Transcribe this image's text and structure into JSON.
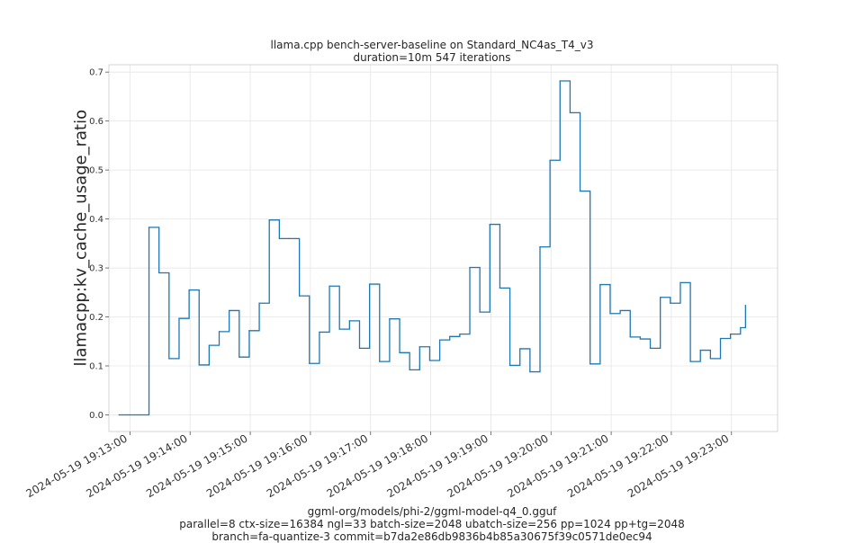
{
  "chart_data": {
    "type": "line",
    "title": "llama.cpp bench-server-baseline on Standard_NC4as_T4_v3",
    "subtitle": "duration=10m 547 iterations",
    "xlabel": "",
    "ylabel": "llamacpp:kv_cache_usage_ratio",
    "ylim": [
      -0.034,
      0.715
    ],
    "xlim": [
      "2024-05-19 19:12:39",
      "2024-05-19 19:23:46"
    ],
    "grid": true,
    "x_ticks": [
      "2024-05-19 19:13:00",
      "2024-05-19 19:14:00",
      "2024-05-19 19:15:00",
      "2024-05-19 19:16:00",
      "2024-05-19 19:17:00",
      "2024-05-19 19:18:00",
      "2024-05-19 19:19:00",
      "2024-05-19 19:20:00",
      "2024-05-19 19:21:00",
      "2024-05-19 19:22:00",
      "2024-05-19 19:23:00"
    ],
    "y_ticks": [
      "0.0",
      "0.1",
      "0.2",
      "0.3",
      "0.4",
      "0.5",
      "0.6",
      "0.7"
    ],
    "series": [
      {
        "color": "#1f77b4",
        "style": "step",
        "x": [
          "2024-05-19 19:12:49",
          "2024-05-19 19:12:59",
          "2024-05-19 19:13:09",
          "2024-05-19 19:13:19",
          "2024-05-19 19:13:29",
          "2024-05-19 19:13:39",
          "2024-05-19 19:13:49",
          "2024-05-19 19:13:59",
          "2024-05-19 19:14:09",
          "2024-05-19 19:14:19",
          "2024-05-19 19:14:29",
          "2024-05-19 19:14:39",
          "2024-05-19 19:14:49",
          "2024-05-19 19:14:59",
          "2024-05-19 19:15:09",
          "2024-05-19 19:15:19",
          "2024-05-19 19:15:29",
          "2024-05-19 19:15:39",
          "2024-05-19 19:15:49",
          "2024-05-19 19:15:59",
          "2024-05-19 19:16:09",
          "2024-05-19 19:16:19",
          "2024-05-19 19:16:29",
          "2024-05-19 19:16:39",
          "2024-05-19 19:16:49",
          "2024-05-19 19:16:59",
          "2024-05-19 19:17:09",
          "2024-05-19 19:17:19",
          "2024-05-19 19:17:29",
          "2024-05-19 19:17:39",
          "2024-05-19 19:17:49",
          "2024-05-19 19:17:59",
          "2024-05-19 19:18:09",
          "2024-05-19 19:18:19",
          "2024-05-19 19:18:29",
          "2024-05-19 19:18:39",
          "2024-05-19 19:18:49",
          "2024-05-19 19:18:59",
          "2024-05-19 19:19:09",
          "2024-05-19 19:19:19",
          "2024-05-19 19:19:29",
          "2024-05-19 19:19:39",
          "2024-05-19 19:19:49",
          "2024-05-19 19:19:59",
          "2024-05-19 19:20:09",
          "2024-05-19 19:20:19",
          "2024-05-19 19:20:29",
          "2024-05-19 19:20:39",
          "2024-05-19 19:20:49",
          "2024-05-19 19:20:59",
          "2024-05-19 19:21:09",
          "2024-05-19 19:21:19",
          "2024-05-19 19:21:29",
          "2024-05-19 19:21:39",
          "2024-05-19 19:21:49",
          "2024-05-19 19:21:59",
          "2024-05-19 19:22:09",
          "2024-05-19 19:22:19",
          "2024-05-19 19:22:29",
          "2024-05-19 19:22:39",
          "2024-05-19 19:22:49",
          "2024-05-19 19:22:59",
          "2024-05-19 19:23:09",
          "2024-05-19 19:23:14"
        ],
        "y": [
          0.0,
          0.0,
          0.0,
          0.383,
          0.29,
          0.115,
          0.197,
          0.255,
          0.102,
          0.142,
          0.17,
          0.213,
          0.118,
          0.172,
          0.228,
          0.398,
          0.36,
          0.36,
          0.243,
          0.105,
          0.169,
          0.263,
          0.175,
          0.192,
          0.136,
          0.267,
          0.109,
          0.196,
          0.127,
          0.092,
          0.139,
          0.111,
          0.153,
          0.16,
          0.165,
          0.301,
          0.21,
          0.389,
          0.259,
          0.101,
          0.135,
          0.088,
          0.343,
          0.52,
          0.682,
          0.617,
          0.457,
          0.104,
          0.266,
          0.207,
          0.213,
          0.159,
          0.155,
          0.136,
          0.24,
          0.228,
          0.27,
          0.109,
          0.132,
          0.115,
          0.156,
          0.165,
          0.178,
          0.224
        ]
      }
    ]
  },
  "footer": {
    "line1": "ggml-org/models/phi-2/ggml-model-q4_0.gguf",
    "line2": "parallel=8 ctx-size=16384 ngl=33 batch-size=2048 ubatch-size=256 pp=1024 pp+tg=2048",
    "line3": "branch=fa-quantize-3 commit=b7da2e86db9836b4b85a30675f39c0571de0ec94"
  }
}
